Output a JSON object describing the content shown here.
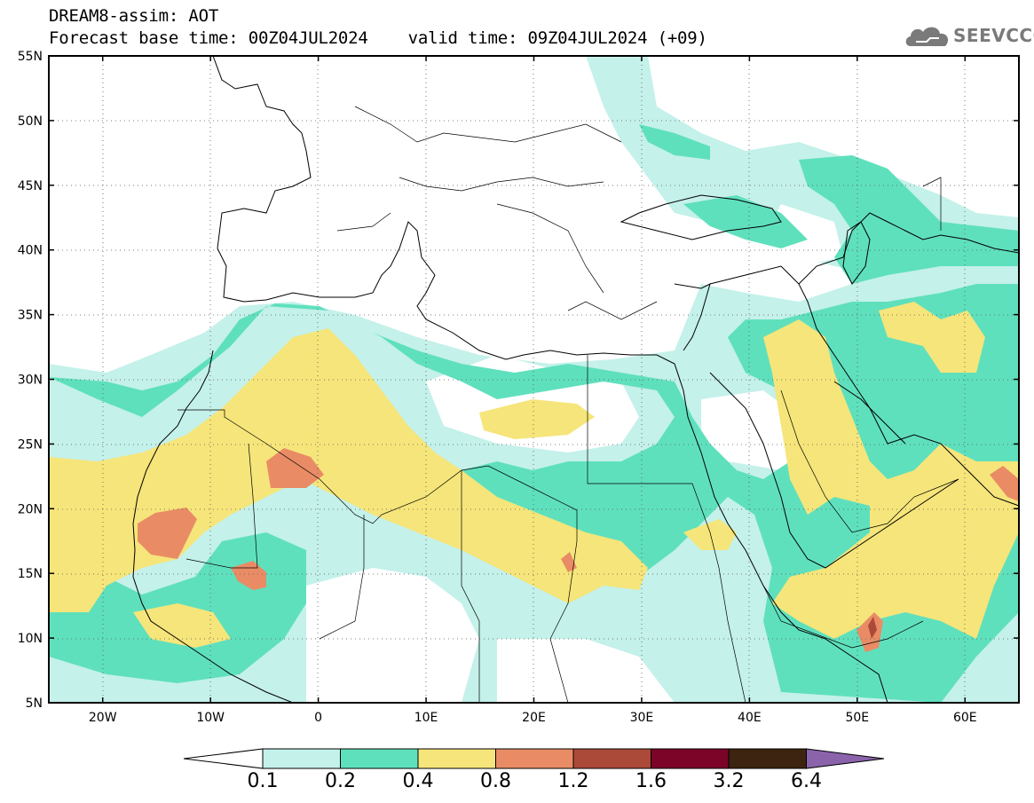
{
  "header": {
    "line1": "DREAM8-assim: AOT",
    "line2": "Forecast base time: 00Z04JUL2024    valid time: 09Z04JUL2024 (+09)"
  },
  "logo": {
    "text": "SEEVCCC",
    "icon": "cloud-icon"
  },
  "map": {
    "projection": "lat-lon",
    "lon_range": [
      -25,
      65
    ],
    "lat_range": [
      5,
      55
    ],
    "grid": "dotted",
    "lat_labels": [
      "55N",
      "50N",
      "45N",
      "40N",
      "35N",
      "30N",
      "25N",
      "20N",
      "15N",
      "10N",
      "5N"
    ],
    "lat_values": [
      55,
      50,
      45,
      40,
      35,
      30,
      25,
      20,
      15,
      10,
      5
    ],
    "lon_labels": [
      "20W",
      "10W",
      "0",
      "10E",
      "20E",
      "30E",
      "40E",
      "50E",
      "60E"
    ],
    "lon_values": [
      -20,
      -10,
      0,
      10,
      20,
      30,
      40,
      50,
      60
    ]
  },
  "colorbar": {
    "levels": [
      "0.1",
      "0.2",
      "0.4",
      "0.8",
      "1.2",
      "1.6",
      "3.2",
      "6.4"
    ],
    "colors": [
      "#c4f1ea",
      "#5fe0bd",
      "#f6e57a",
      "#e98c66",
      "#ac4a3a",
      "#7c0428",
      "#3c2410",
      "#8a63ab"
    ],
    "under_color": "#ffffff"
  }
}
